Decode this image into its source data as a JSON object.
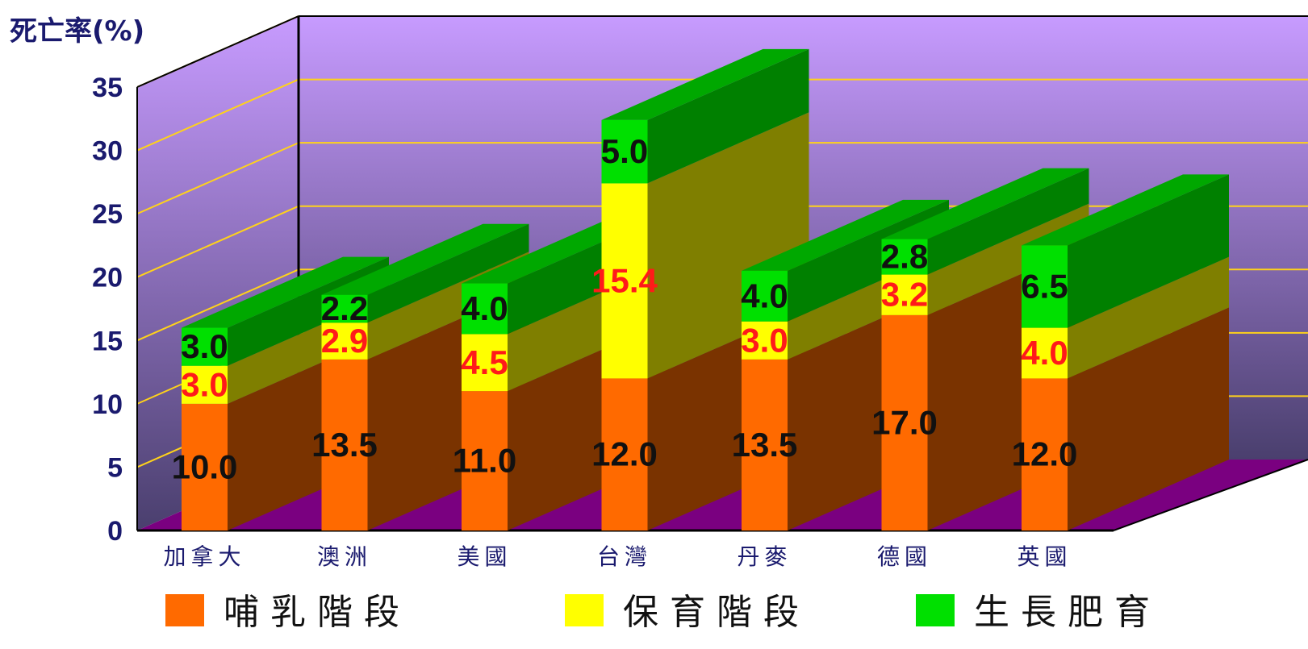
{
  "chart_data": {
    "type": "bar",
    "stacked": true,
    "ylabel": "死亡率(%)",
    "ylim": [
      0,
      35
    ],
    "yticks": [
      0,
      5,
      10,
      15,
      20,
      25,
      30,
      35
    ],
    "grid": true,
    "legend": "bottom",
    "categories": [
      "加拿大",
      "澳洲",
      "美國",
      "台灣",
      "丹麥",
      "德國",
      "英國"
    ],
    "series": [
      {
        "name": "哺乳階段",
        "values": [
          10.0,
          13.5,
          11.0,
          12.0,
          13.5,
          17.0,
          12.0
        ],
        "labels": [
          "10.0",
          "13.5",
          "11.0",
          "12.0",
          "13.5",
          "17.0",
          "12.0"
        ]
      },
      {
        "name": "保育階段",
        "values": [
          3.0,
          2.9,
          4.5,
          15.4,
          3.0,
          3.2,
          4.0
        ],
        "labels": [
          "3.0",
          "2.9",
          "4.5",
          "15.4",
          "3.0",
          "3.2",
          "4.0"
        ]
      },
      {
        "name": "生長肥育",
        "values": [
          3.0,
          2.2,
          4.0,
          5.0,
          4.0,
          2.8,
          6.5
        ],
        "labels": [
          "3.0",
          "2.2",
          "4.0",
          "5.0",
          "4.0",
          "2.8",
          "6.5"
        ]
      }
    ],
    "colors": {
      "series_front": [
        "#ff6a00",
        "#ffff00",
        "#00e000"
      ],
      "series_side": [
        "#7a3300",
        "#7f7f00",
        "#008000"
      ],
      "label_colors": [
        "#111111",
        "#ff1a1a",
        "#111111"
      ],
      "wall_top": "#c79bff",
      "wall_bottom": "#4a3f6e",
      "floor": "#7a0080",
      "gridline": "#ffd21a",
      "axis_text": "#1a1a6e"
    }
  }
}
